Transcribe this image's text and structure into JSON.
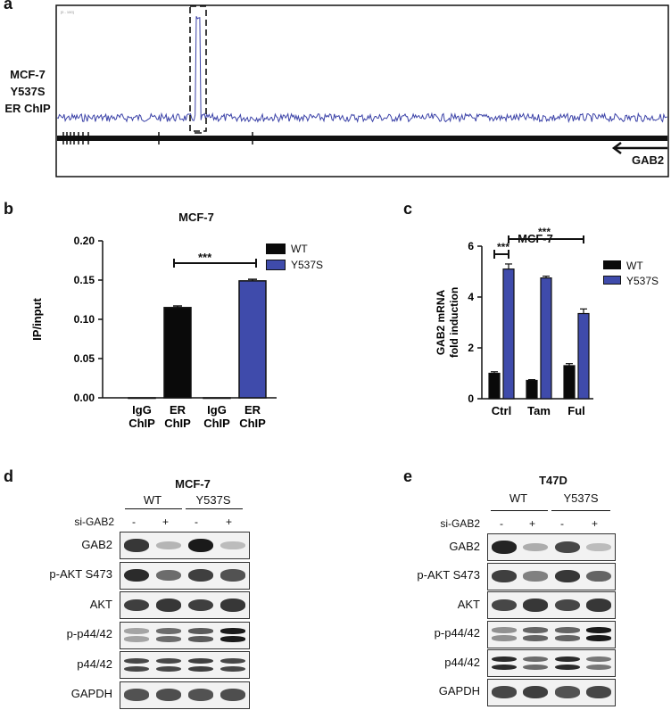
{
  "colors": {
    "wt": "#0a0a0a",
    "mut": "#3f4bab",
    "track": "#3c43a8"
  },
  "panel_a": {
    "letter": "a",
    "side_label": [
      "MCF-7",
      "Y537S",
      "ER ChIP"
    ],
    "gene": "GAB2",
    "track_corner_text": "[0 - 100]"
  },
  "panel_b": {
    "letter": "b",
    "significance": "***",
    "legend": [
      "WT",
      "Y537S"
    ]
  },
  "panel_c": {
    "letter": "c",
    "significance_left": "***",
    "significance_right": "***",
    "legend": [
      "WT",
      "Y537S"
    ]
  },
  "chart_data": [
    {
      "type": "bar",
      "title": "MCF-7",
      "ylabel": "IP/input",
      "ylim": [
        0,
        0.2
      ],
      "yticks": [
        "0.00",
        "0.05",
        "0.10",
        "0.15",
        "0.20"
      ],
      "categories": [
        "IgG ChIP",
        "ER ChIP",
        "IgG ChIP",
        "ER ChIP"
      ],
      "bar_groups": [
        "WT",
        "WT",
        "Y537S",
        "Y537S"
      ],
      "values": [
        0.0,
        0.115,
        0.0,
        0.149
      ],
      "errors": [
        0.0,
        0.002,
        0.0,
        0.002
      ],
      "legend_position": "top-right"
    },
    {
      "type": "bar",
      "title": "MCF-7",
      "ylabel": "GAB2 mRNA fold induction",
      "ylim": [
        0,
        6
      ],
      "yticks": [
        "0",
        "2",
        "4",
        "6"
      ],
      "categories": [
        "Ctrl",
        "Tam",
        "Ful"
      ],
      "series": [
        {
          "name": "WT",
          "values": [
            1.0,
            0.72,
            1.3
          ],
          "errors": [
            0.06,
            0.03,
            0.08
          ]
        },
        {
          "name": "Y537S",
          "values": [
            5.1,
            4.75,
            3.35
          ],
          "errors": [
            0.2,
            0.07,
            0.18
          ]
        }
      ],
      "legend_position": "right"
    }
  ],
  "panel_d": {
    "letter": "d",
    "title": "MCF-7",
    "groups": [
      "WT",
      "Y537S"
    ],
    "si_label": "si-GAB2",
    "si_values": [
      "-",
      "+",
      "-",
      "+"
    ],
    "rows": [
      "GAB2",
      "p-AKT S473",
      "AKT",
      "p-p44/42",
      "p44/42",
      "GAPDH"
    ]
  },
  "panel_e": {
    "letter": "e",
    "title": "T47D",
    "groups": [
      "WT",
      "Y537S"
    ],
    "si_label": "si-GAB2",
    "si_values": [
      "-",
      "+",
      "-",
      "+"
    ],
    "rows": [
      "GAB2",
      "p-AKT S473",
      "AKT",
      "p-p44/42",
      "p44/42",
      "GAPDH"
    ]
  }
}
